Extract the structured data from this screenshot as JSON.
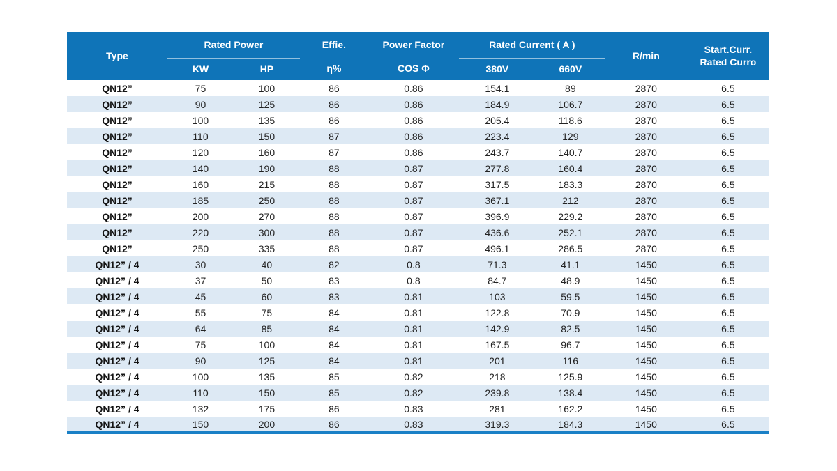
{
  "table": {
    "header": {
      "type": "Type",
      "rated_power": "Rated Power",
      "kw": "KW",
      "hp": "HP",
      "effie": "Effie.",
      "eta_pct": "η%",
      "power_factor": "Power Factor",
      "cos_phi": "COS Φ",
      "rated_current": "Rated Current ( A )",
      "v380": "380V",
      "v660": "660V",
      "rpm": "R/min",
      "start_curr_line1": "Start.Curr.",
      "start_curr_line2": "Rated Curro"
    },
    "rows": [
      [
        "QN12”",
        "75",
        "100",
        "86",
        "0.86",
        "154.1",
        "89",
        "2870",
        "6.5"
      ],
      [
        "QN12”",
        "90",
        "125",
        "86",
        "0.86",
        "184.9",
        "106.7",
        "2870",
        "6.5"
      ],
      [
        "QN12”",
        "100",
        "135",
        "86",
        "0.86",
        "205.4",
        "118.6",
        "2870",
        "6.5"
      ],
      [
        "QN12”",
        "110",
        "150",
        "87",
        "0.86",
        "223.4",
        "129",
        "2870",
        "6.5"
      ],
      [
        "QN12”",
        "120",
        "160",
        "87",
        "0.86",
        "243.7",
        "140.7",
        "2870",
        "6.5"
      ],
      [
        "QN12”",
        "140",
        "190",
        "88",
        "0.87",
        "277.8",
        "160.4",
        "2870",
        "6.5"
      ],
      [
        "QN12”",
        "160",
        "215",
        "88",
        "0.87",
        "317.5",
        "183.3",
        "2870",
        "6.5"
      ],
      [
        "QN12”",
        "185",
        "250",
        "88",
        "0.87",
        "367.1",
        "212",
        "2870",
        "6.5"
      ],
      [
        "QN12”",
        "200",
        "270",
        "88",
        "0.87",
        "396.9",
        "229.2",
        "2870",
        "6.5"
      ],
      [
        "QN12”",
        "220",
        "300",
        "88",
        "0.87",
        "436.6",
        "252.1",
        "2870",
        "6.5"
      ],
      [
        "QN12”",
        "250",
        "335",
        "88",
        "0.87",
        "496.1",
        "286.5",
        "2870",
        "6.5"
      ],
      [
        "QN12” / 4",
        "30",
        "40",
        "82",
        "0.8",
        "71.3",
        "41.1",
        "1450",
        "6.5"
      ],
      [
        "QN12” / 4",
        "37",
        "50",
        "83",
        "0.8",
        "84.7",
        "48.9",
        "1450",
        "6.5"
      ],
      [
        "QN12” / 4",
        "45",
        "60",
        "83",
        "0.81",
        "103",
        "59.5",
        "1450",
        "6.5"
      ],
      [
        "QN12” / 4",
        "55",
        "75",
        "84",
        "0.81",
        "122.8",
        "70.9",
        "1450",
        "6.5"
      ],
      [
        "QN12” / 4",
        "64",
        "85",
        "84",
        "0.81",
        "142.9",
        "82.5",
        "1450",
        "6.5"
      ],
      [
        "QN12” / 4",
        "75",
        "100",
        "84",
        "0.81",
        "167.5",
        "96.7",
        "1450",
        "6.5"
      ],
      [
        "QN12” / 4",
        "90",
        "125",
        "84",
        "0.81",
        "201",
        "116",
        "1450",
        "6.5"
      ],
      [
        "QN12” / 4",
        "100",
        "135",
        "85",
        "0.82",
        "218",
        "125.9",
        "1450",
        "6.5"
      ],
      [
        "QN12” / 4",
        "110",
        "150",
        "85",
        "0.82",
        "239.8",
        "138.4",
        "1450",
        "6.5"
      ],
      [
        "QN12” / 4",
        "132",
        "175",
        "86",
        "0.83",
        "281",
        "162.2",
        "1450",
        "6.5"
      ],
      [
        "QN12” / 4",
        "150",
        "200",
        "86",
        "0.83",
        "319.3",
        "184.3",
        "1450",
        "6.5"
      ]
    ]
  },
  "colors": {
    "header_bg": "#0f74b8",
    "stripe_bg": "#dde9f4",
    "bottom_accent": "#1a80c6",
    "header_text": "#ffffff",
    "body_text": "#232323"
  }
}
